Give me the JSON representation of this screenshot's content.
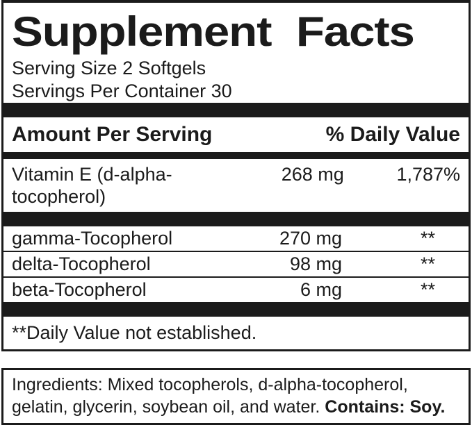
{
  "colors": {
    "ink": "#1b1b1b",
    "background": "#ffffff"
  },
  "label": {
    "title": "Supplement Facts",
    "serving_size": "Serving Size 2 Softgels",
    "servings_per_container": "Servings Per Container 30",
    "header": {
      "amount": "Amount Per Serving",
      "daily_value": "% Daily Value"
    },
    "rows": [
      {
        "name": "Vitamin E (d-alpha-tocopherol)",
        "amount": "268 mg",
        "dv": "1,787%"
      },
      {
        "name": "gamma-Tocopherol",
        "amount": "270 mg",
        "dv": "**"
      },
      {
        "name": "delta-Tocopherol",
        "amount": "98 mg",
        "dv": "**"
      },
      {
        "name": "beta-Tocopherol",
        "amount": "6 mg",
        "dv": "**"
      }
    ],
    "footnote": "**Daily Value not established."
  },
  "ingredients": {
    "line1": "Ingredients: Mixed tocopherols, d-alpha-tocopherol,",
    "line2": "gelatin, glycerin, soybean oil, and water. ",
    "contains": "Contains: Soy."
  }
}
